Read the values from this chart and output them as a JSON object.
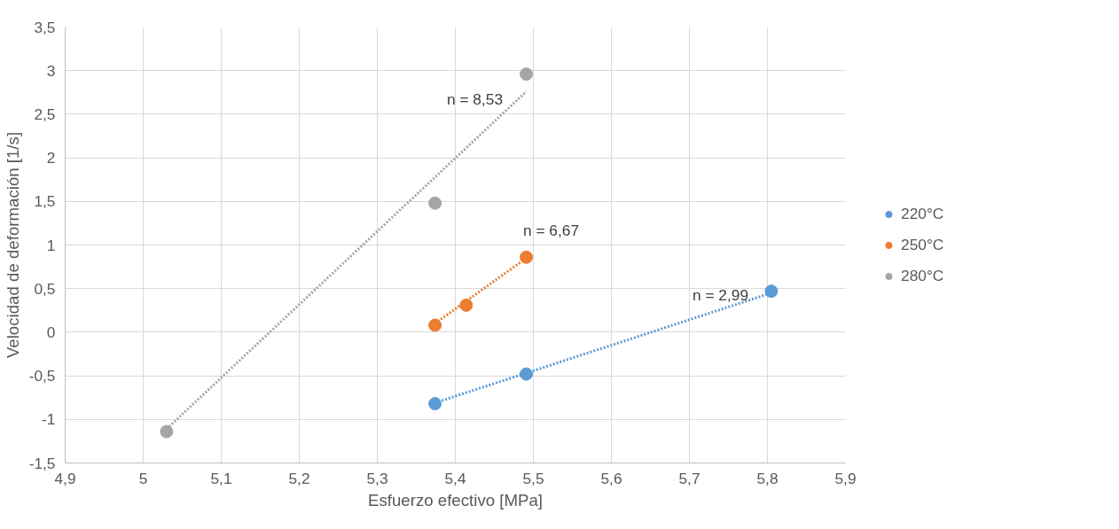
{
  "chart_data": {
    "type": "scatter",
    "xlabel": "Esfuerzo efectivo [MPa]",
    "ylabel": "Velocidad de deformación [1/s]",
    "xlim": [
      4.9,
      5.9
    ],
    "ylim": [
      -1.5,
      3.5
    ],
    "xticks": [
      {
        "value": 4.9,
        "label": "4,9"
      },
      {
        "value": 5,
        "label": "5"
      },
      {
        "value": 5.1,
        "label": "5,1"
      },
      {
        "value": 5.2,
        "label": "5,2"
      },
      {
        "value": 5.3,
        "label": "5,3"
      },
      {
        "value": 5.4,
        "label": "5,4"
      },
      {
        "value": 5.5,
        "label": "5,5"
      },
      {
        "value": 5.6,
        "label": "5,6"
      },
      {
        "value": 5.7,
        "label": "5,7"
      },
      {
        "value": 5.8,
        "label": "5,8"
      },
      {
        "value": 5.9,
        "label": "5,9"
      }
    ],
    "yticks": [
      {
        "value": -1.5,
        "label": "-1,5"
      },
      {
        "value": -1,
        "label": "-1"
      },
      {
        "value": -0.5,
        "label": "-0,5"
      },
      {
        "value": 0,
        "label": "0"
      },
      {
        "value": 0.5,
        "label": "0,5"
      },
      {
        "value": 1,
        "label": "1"
      },
      {
        "value": 1.5,
        "label": "1,5"
      },
      {
        "value": 2,
        "label": "2"
      },
      {
        "value": 2.5,
        "label": "2,5"
      },
      {
        "value": 3,
        "label": "3"
      },
      {
        "value": 3.5,
        "label": "3,5"
      }
    ],
    "grid": true,
    "legend": "right",
    "marker": "circle",
    "series": [
      {
        "name": "220°C",
        "color": "#5b9bd5",
        "x": [
          5.374,
          5.491,
          5.805
        ],
        "values": [
          -0.82,
          -0.48,
          0.47
        ]
      },
      {
        "name": "250°C",
        "color": "#ed7d31",
        "x": [
          5.374,
          5.414,
          5.491
        ],
        "values": [
          0.08,
          0.31,
          0.86
        ]
      },
      {
        "name": "280°C",
        "color": "#a5a5a5",
        "x": [
          5.03,
          5.374,
          5.491
        ],
        "values": [
          -1.14,
          1.48,
          2.96
        ]
      },
      {
        "type": "line",
        "line_style": "dotted",
        "marker": "none",
        "color": "#5b9bd5",
        "x": [
          5.374,
          5.805
        ],
        "values": [
          -0.81,
          0.45
        ]
      },
      {
        "type": "line",
        "line_style": "dotted",
        "marker": "none",
        "color": "#ed7d31",
        "x": [
          5.374,
          5.491
        ],
        "values": [
          0.1,
          0.85
        ]
      },
      {
        "type": "line",
        "line_style": "dotted",
        "marker": "none",
        "color": "#a5a5a5",
        "x": [
          5.03,
          5.491
        ],
        "values": [
          -1.11,
          2.76
        ]
      }
    ],
    "annotations": [
      "n = 8,53",
      "n = 6,67",
      "n = 2,99"
    ]
  }
}
